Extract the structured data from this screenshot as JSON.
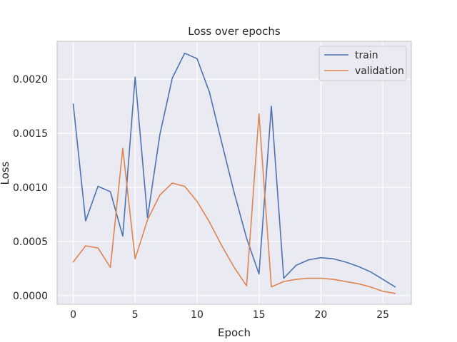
{
  "chart_data": {
    "type": "line",
    "title": "Loss over epochs",
    "xlabel": "Epoch",
    "ylabel": "Loss",
    "xlim": [
      -1.3,
      27.3
    ],
    "ylim": [
      -8e-05,
      0.00235
    ],
    "xticks": [
      0,
      5,
      10,
      15,
      20,
      25
    ],
    "xtick_labels": [
      "0",
      "5",
      "10",
      "15",
      "20",
      "25"
    ],
    "yticks": [
      0.0,
      0.0005,
      0.001,
      0.0015,
      0.002
    ],
    "ytick_labels": [
      "0.0000",
      "0.0005",
      "0.0010",
      "0.0015",
      "0.0020"
    ],
    "grid": true,
    "legend_position": "top-right",
    "x": [
      0,
      1,
      2,
      3,
      4,
      5,
      6,
      7,
      8,
      9,
      10,
      11,
      12,
      13,
      14,
      15,
      16,
      17,
      18,
      19,
      20,
      21,
      22,
      23,
      24,
      25,
      26
    ],
    "series": [
      {
        "name": "train",
        "color": "#4c72b0",
        "values": [
          0.00177,
          0.00069,
          0.00101,
          0.00096,
          0.00055,
          0.00202,
          0.00072,
          0.00149,
          0.00201,
          0.00224,
          0.00219,
          0.00188,
          0.00141,
          0.00095,
          0.00053,
          0.0002,
          0.00175,
          0.00016,
          0.00028,
          0.00033,
          0.00035,
          0.00034,
          0.00031,
          0.00027,
          0.00022,
          0.00015,
          8e-05
        ]
      },
      {
        "name": "validation",
        "color": "#dd8452",
        "values": [
          0.00031,
          0.00046,
          0.00044,
          0.00026,
          0.00136,
          0.00034,
          0.0007,
          0.00093,
          0.00104,
          0.00101,
          0.00087,
          0.00068,
          0.00046,
          0.00026,
          9e-05,
          0.00168,
          8e-05,
          0.00013,
          0.00015,
          0.00016,
          0.00016,
          0.00015,
          0.00013,
          0.00011,
          8e-05,
          4e-05,
          2e-05
        ]
      }
    ]
  }
}
